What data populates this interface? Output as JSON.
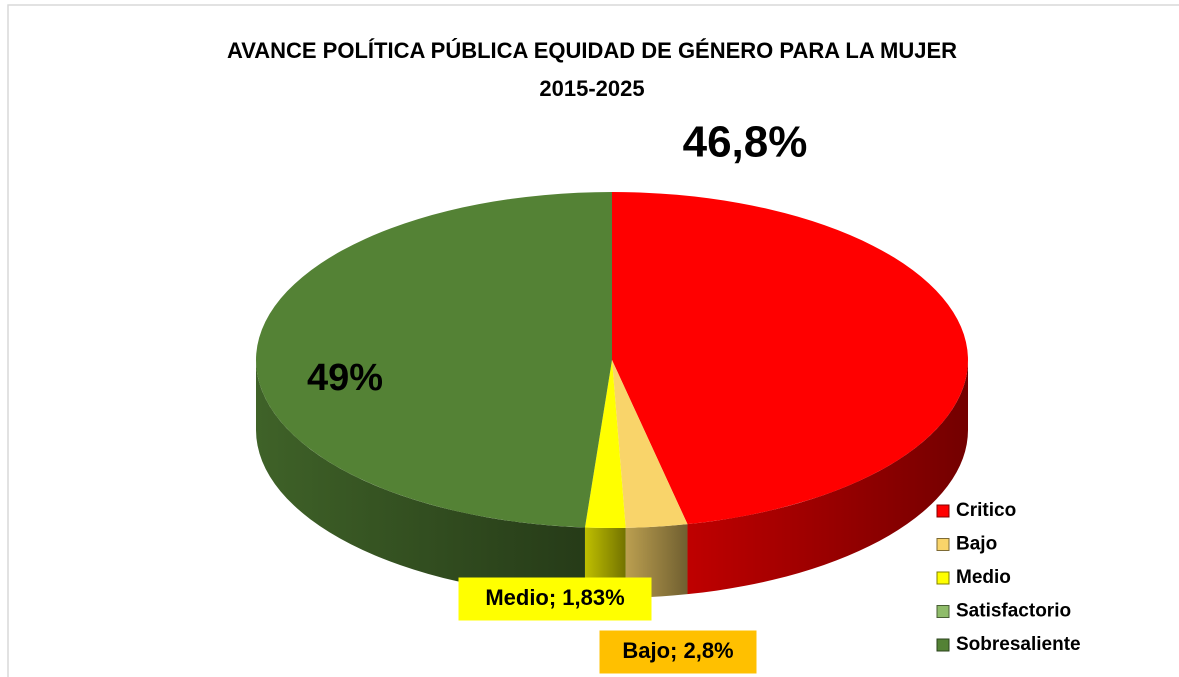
{
  "chart_data": {
    "type": "pie3d",
    "title": "AVANCE POLÍTICA PÚBLICA EQUIDAD DE GÉNERO PARA LA MUJER",
    "subtitle": "2015-2025",
    "categories": [
      "Critico",
      "Bajo",
      "Medio",
      "Satisfactorio",
      "Sobresaliente"
    ],
    "values": [
      46.8,
      2.8,
      1.83,
      0,
      49
    ],
    "value_labels": [
      "46,8%",
      "Bajo; 2,8%",
      "Medio; 1,83%",
      null,
      "49%"
    ],
    "colors": [
      "#ff0000",
      "#f9d46a",
      "#ffff00",
      "#8fbc6a",
      "#548235"
    ],
    "legend": "right"
  }
}
